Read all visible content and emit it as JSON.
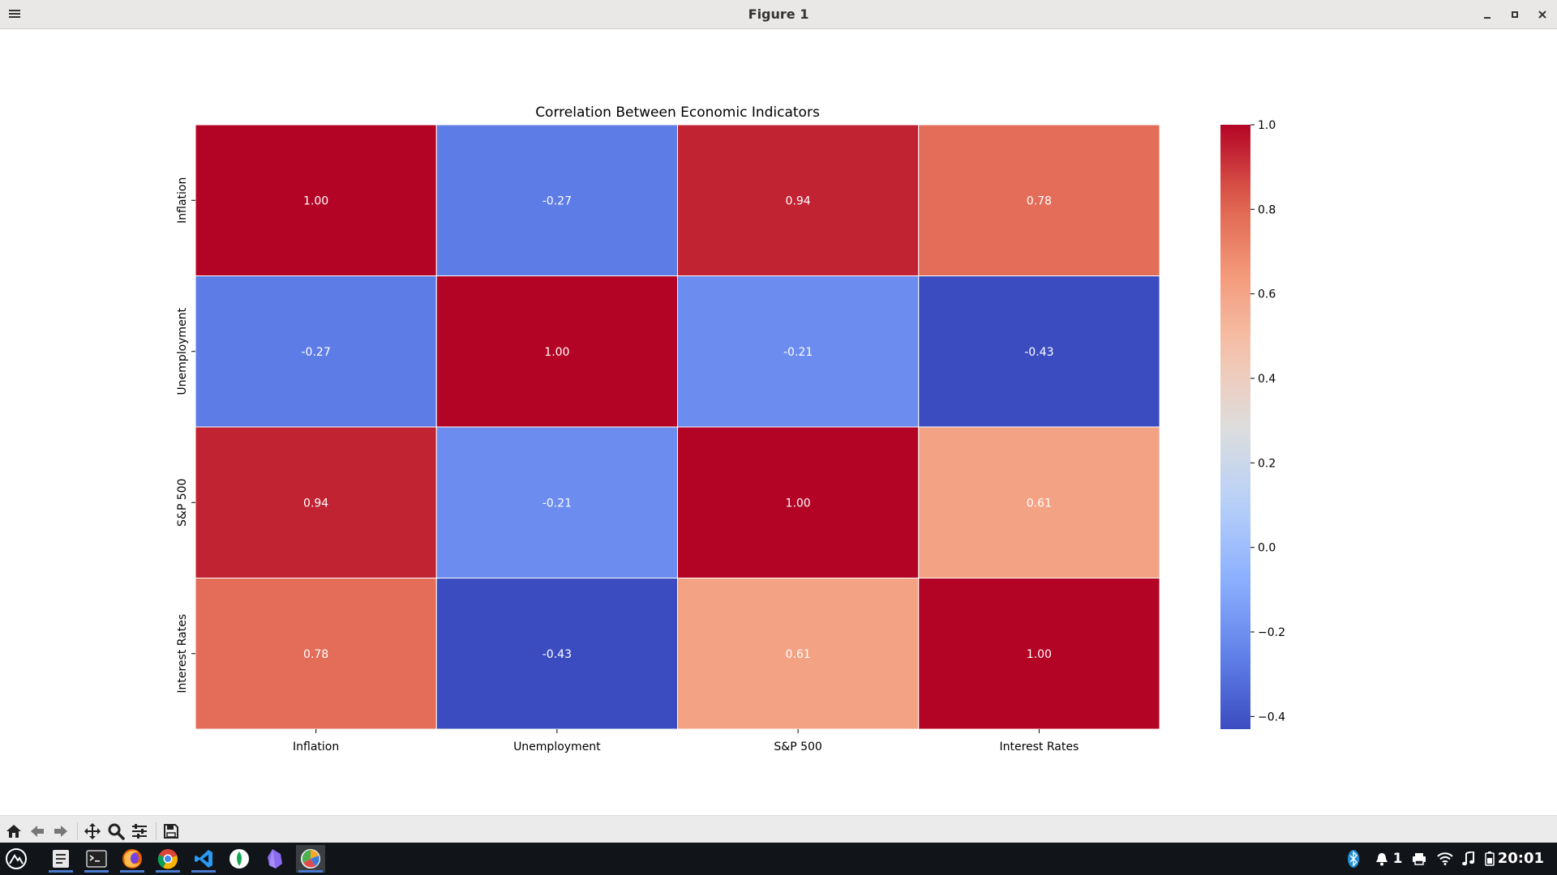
{
  "window": {
    "title": "Figure 1"
  },
  "chart_data": {
    "type": "heatmap",
    "title": "Correlation Between Economic Indicators",
    "rows": [
      "Inflation",
      "Unemployment",
      "S&P 500",
      "Interest Rates"
    ],
    "columns": [
      "Inflation",
      "Unemployment",
      "S&P 500",
      "Interest Rates"
    ],
    "values": [
      [
        1.0,
        -0.27,
        0.94,
        0.78
      ],
      [
        -0.27,
        1.0,
        -0.21,
        -0.43
      ],
      [
        0.94,
        -0.21,
        1.0,
        0.61
      ],
      [
        0.78,
        -0.43,
        0.61,
        1.0
      ]
    ],
    "annotation_format": "0.00",
    "colormap": "coolwarm",
    "color_range": [
      -0.43,
      1.0
    ],
    "colorbar_ticks": [
      "1.0",
      "0.8",
      "0.6",
      "0.4",
      "0.2",
      "0.0",
      "−0.2",
      "−0.4"
    ],
    "colorbar_tick_values": [
      1.0,
      0.8,
      0.6,
      0.4,
      0.2,
      0.0,
      -0.2,
      -0.4
    ]
  },
  "toolbar": {
    "buttons": [
      {
        "id": "home",
        "icon": "home-icon"
      },
      {
        "id": "back",
        "icon": "arrow-left-icon"
      },
      {
        "id": "forward",
        "icon": "arrow-right-icon"
      },
      {
        "id": "pan",
        "icon": "move-icon"
      },
      {
        "id": "zoom",
        "icon": "magnifier-icon"
      },
      {
        "id": "configure",
        "icon": "sliders-icon"
      },
      {
        "id": "save",
        "icon": "floppy-disk-icon"
      }
    ]
  },
  "taskbar": {
    "apps": [
      "launcher-icon",
      "file-manager-icon",
      "terminal-icon",
      "firefox-icon",
      "chrome-icon",
      "vscode-icon",
      "mongodb-compass-icon",
      "obsidian-icon",
      "figure-app-icon"
    ],
    "tray": {
      "notification_count": "1",
      "clock": "20:01"
    }
  },
  "colors": {
    "titlebar": "#e9e8e6",
    "toolbar": "#ebebeb",
    "taskbar": "#111418"
  }
}
